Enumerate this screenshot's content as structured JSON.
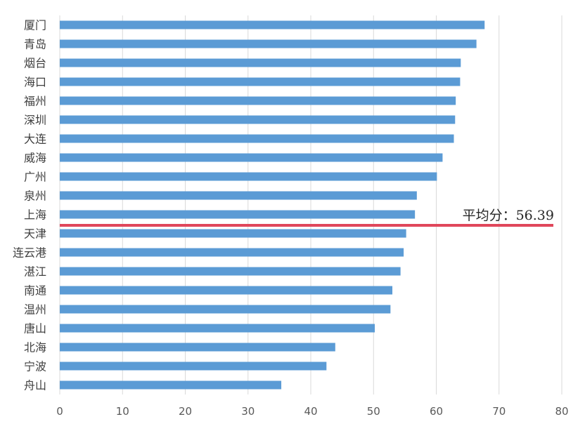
{
  "chart_data": {
    "type": "bar",
    "orientation": "horizontal",
    "categories": [
      "厦门",
      "青岛",
      "烟台",
      "海口",
      "福州",
      "深圳",
      "大连",
      "威海",
      "广州",
      "泉州",
      "上海",
      "天津",
      "连云港",
      "湛江",
      "南通",
      "温州",
      "唐山",
      "北海",
      "宁波",
      "舟山"
    ],
    "values": [
      67.7,
      66.4,
      63.9,
      63.8,
      63.1,
      63.0,
      62.8,
      61.0,
      60.1,
      56.9,
      56.6,
      55.2,
      54.8,
      54.3,
      53.0,
      52.7,
      50.2,
      43.9,
      42.5,
      35.3
    ],
    "xlim": [
      0,
      80
    ],
    "xticks": [
      0,
      10,
      20,
      30,
      40,
      50,
      60,
      70,
      80
    ],
    "grid": true,
    "bar_color": "#5B9BD5",
    "average": {
      "value": 56.39,
      "label": "平均分：56.39",
      "color": "#E0475B"
    },
    "title": "",
    "xlabel": "",
    "ylabel": ""
  }
}
